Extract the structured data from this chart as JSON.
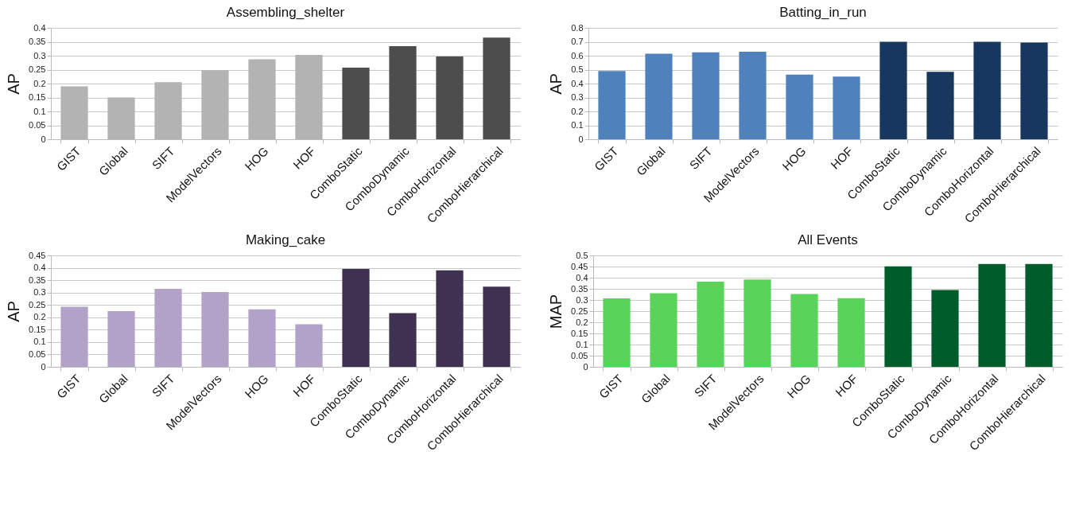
{
  "chart_data": [
    {
      "type": "bar",
      "title": "Assembling_shelter",
      "ylabel": "AP",
      "categories": [
        "GIST",
        "Global",
        "SIFT",
        "ModelVectors",
        "HOG",
        "HOF",
        "ComboStatic",
        "ComboDynamic",
        "ComboHorizontal",
        "ComboHierarchical"
      ],
      "values": [
        0.19,
        0.15,
        0.205,
        0.248,
        0.287,
        0.303,
        0.257,
        0.334,
        0.297,
        0.365
      ],
      "colors": [
        "#b3b3b3",
        "#b3b3b3",
        "#b3b3b3",
        "#b3b3b3",
        "#b3b3b3",
        "#b3b3b3",
        "#4d4d4d",
        "#4d4d4d",
        "#4d4d4d",
        "#4d4d4d"
      ],
      "ylim": [
        0,
        0.4
      ],
      "yticks": [
        0,
        0.05,
        0.1,
        0.15,
        0.2,
        0.25,
        0.3,
        0.35,
        0.4
      ],
      "grid": "y"
    },
    {
      "type": "bar",
      "title": "Batting_in_run",
      "ylabel": "AP",
      "categories": [
        "GIST",
        "Global",
        "SIFT",
        "ModelVectors",
        "HOG",
        "HOF",
        "ComboStatic",
        "ComboDynamic",
        "ComboHorizontal",
        "ComboHierarchical"
      ],
      "values": [
        0.49,
        0.615,
        0.625,
        0.628,
        0.465,
        0.45,
        0.7,
        0.485,
        0.7,
        0.695
      ],
      "colors": [
        "#4f81bd",
        "#4f81bd",
        "#4f81bd",
        "#4f81bd",
        "#4f81bd",
        "#4f81bd",
        "#17375e",
        "#17375e",
        "#17375e",
        "#17375e"
      ],
      "ylim": [
        0,
        0.8
      ],
      "yticks": [
        0,
        0.1,
        0.2,
        0.3,
        0.4,
        0.5,
        0.6,
        0.7,
        0.8
      ],
      "grid": "y"
    },
    {
      "type": "bar",
      "title": "Making_cake",
      "ylabel": "AP",
      "categories": [
        "GIST",
        "Global",
        "SIFT",
        "ModelVectors",
        "HOG",
        "HOF",
        "ComboStatic",
        "ComboDynamic",
        "ComboHorizontal",
        "ComboHierarchical"
      ],
      "values": [
        0.243,
        0.225,
        0.315,
        0.302,
        0.232,
        0.172,
        0.395,
        0.217,
        0.39,
        0.324
      ],
      "colors": [
        "#b3a2c7",
        "#b3a2c7",
        "#b3a2c7",
        "#b3a2c7",
        "#b3a2c7",
        "#b3a2c7",
        "#3f3151",
        "#3f3151",
        "#3f3151",
        "#3f3151"
      ],
      "ylim": [
        0,
        0.45
      ],
      "yticks": [
        0,
        0.05,
        0.1,
        0.15,
        0.2,
        0.25,
        0.3,
        0.35,
        0.4,
        0.45
      ],
      "grid": "y"
    },
    {
      "type": "bar",
      "title": "All Events",
      "ylabel": "MAP",
      "categories": [
        "GIST",
        "Global",
        "SIFT",
        "ModelVectors",
        "HOG",
        "HOF",
        "ComboStatic",
        "ComboDynamic",
        "ComboHorizontal",
        "ComboHierarchical"
      ],
      "values": [
        0.307,
        0.33,
        0.382,
        0.392,
        0.327,
        0.308,
        0.451,
        0.345,
        0.462,
        0.462
      ],
      "colors": [
        "#5ad35a",
        "#5ad35a",
        "#5ad35a",
        "#5ad35a",
        "#5ad35a",
        "#5ad35a",
        "#005c2a",
        "#005c2a",
        "#005c2a",
        "#005c2a"
      ],
      "ylim": [
        0,
        0.5
      ],
      "yticks": [
        0,
        0.05,
        0.1,
        0.15,
        0.2,
        0.25,
        0.3,
        0.35,
        0.4,
        0.45,
        0.5
      ],
      "grid": "y"
    }
  ]
}
